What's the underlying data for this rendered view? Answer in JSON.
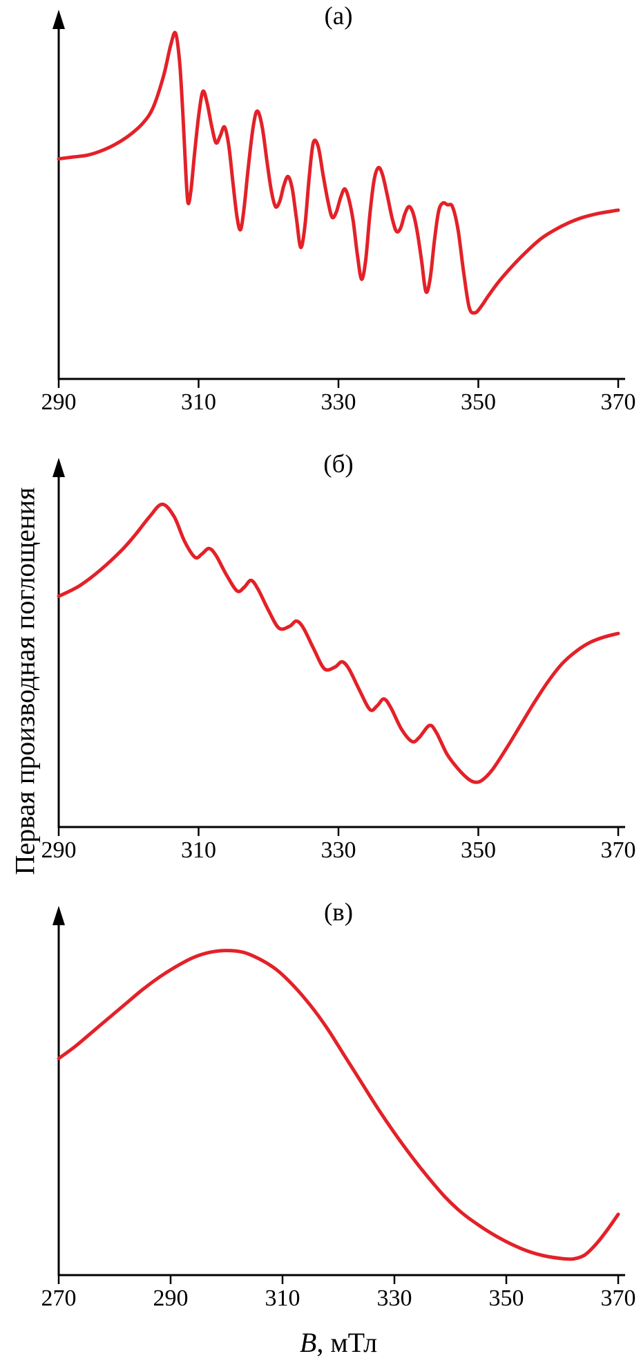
{
  "figure": {
    "ylabel": "Первая производная поглощения",
    "xlabel_variable": "B",
    "xlabel_unit": ", мТл",
    "curve_color": "#e32128",
    "axis_color": "#000000"
  },
  "chart_data": [
    {
      "type": "line",
      "panel": "a",
      "title": "(а)",
      "xlim": [
        290,
        370
      ],
      "xticks": [
        290,
        310,
        330,
        350,
        370
      ],
      "ylim": [
        0,
        1
      ],
      "grid": false,
      "legend": false,
      "x": [
        290,
        292,
        294,
        296,
        298,
        300,
        302,
        303.5,
        305,
        306,
        306.7,
        307.3,
        307.8,
        308.2,
        308.5,
        308.9,
        309.4,
        310,
        310.6,
        311.2,
        311.9,
        312.5,
        313.1,
        313.7,
        314.3,
        314.9,
        315.5,
        316,
        316.5,
        317.1,
        317.8,
        318.4,
        319.1,
        319.8,
        320.4,
        321,
        321.6,
        322.2,
        322.8,
        323.4,
        324,
        324.6,
        325.2,
        325.8,
        326.4,
        327.1,
        327.8,
        328.5,
        329.1,
        329.7,
        330.3,
        330.9,
        331.5,
        332.1,
        332.7,
        333.3,
        333.9,
        334.5,
        335.1,
        335.7,
        336.3,
        337,
        337.7,
        338.3,
        338.9,
        339.5,
        340.1,
        340.7,
        341.3,
        341.9,
        342.5,
        343.1,
        343.7,
        344.3,
        344.9,
        345.6,
        346.3,
        347.1,
        347.9,
        348.7,
        349.5,
        350.3,
        351.5,
        353,
        355,
        357,
        359,
        361,
        363,
        365,
        367,
        369,
        370
      ],
      "y": [
        0.61,
        0.615,
        0.62,
        0.632,
        0.65,
        0.675,
        0.71,
        0.755,
        0.845,
        0.93,
        0.965,
        0.88,
        0.72,
        0.56,
        0.485,
        0.52,
        0.62,
        0.73,
        0.8,
        0.77,
        0.7,
        0.655,
        0.675,
        0.7,
        0.65,
        0.545,
        0.445,
        0.41,
        0.47,
        0.585,
        0.7,
        0.745,
        0.7,
        0.6,
        0.52,
        0.475,
        0.49,
        0.535,
        0.56,
        0.525,
        0.44,
        0.36,
        0.42,
        0.555,
        0.655,
        0.645,
        0.565,
        0.49,
        0.445,
        0.46,
        0.5,
        0.525,
        0.495,
        0.435,
        0.34,
        0.27,
        0.325,
        0.455,
        0.55,
        0.585,
        0.565,
        0.505,
        0.44,
        0.405,
        0.415,
        0.455,
        0.475,
        0.455,
        0.4,
        0.32,
        0.235,
        0.27,
        0.375,
        0.46,
        0.485,
        0.48,
        0.475,
        0.41,
        0.29,
        0.19,
        0.175,
        0.19,
        0.225,
        0.265,
        0.31,
        0.35,
        0.385,
        0.41,
        0.43,
        0.445,
        0.455,
        0.462,
        0.465
      ]
    },
    {
      "type": "line",
      "panel": "b",
      "title": "(б)",
      "xlim": [
        290,
        370
      ],
      "xticks": [
        290,
        310,
        330,
        350,
        370
      ],
      "ylim": [
        0,
        1
      ],
      "grid": false,
      "legend": false,
      "x": [
        290,
        293,
        296,
        299,
        301,
        303,
        304.8,
        306.5,
        308,
        309.5,
        310.5,
        311.5,
        312.5,
        314,
        315.5,
        316.5,
        317.5,
        318.5,
        320,
        321.5,
        323,
        324,
        325,
        326.5,
        328,
        329.5,
        330.5,
        331.5,
        333,
        334.5,
        335.5,
        336.5,
        337.5,
        339,
        340.5,
        341.5,
        343,
        344,
        345.5,
        347,
        348.5,
        349.5,
        350.5,
        352,
        354,
        356,
        358,
        360,
        362,
        364,
        366,
        368,
        370
      ],
      "y": [
        0.64,
        0.67,
        0.715,
        0.77,
        0.815,
        0.865,
        0.9,
        0.865,
        0.795,
        0.75,
        0.76,
        0.775,
        0.755,
        0.7,
        0.655,
        0.665,
        0.685,
        0.66,
        0.6,
        0.55,
        0.555,
        0.57,
        0.55,
        0.49,
        0.435,
        0.44,
        0.455,
        0.435,
        0.375,
        0.32,
        0.33,
        0.35,
        0.325,
        0.265,
        0.23,
        0.24,
        0.275,
        0.255,
        0.195,
        0.155,
        0.125,
        0.115,
        0.12,
        0.15,
        0.21,
        0.275,
        0.34,
        0.4,
        0.45,
        0.485,
        0.51,
        0.525,
        0.535
      ]
    },
    {
      "type": "line",
      "panel": "v",
      "title": "(в)",
      "xlim": [
        270,
        370
      ],
      "xticks": [
        270,
        290,
        310,
        330,
        350,
        370
      ],
      "ylim": [
        0,
        1
      ],
      "grid": false,
      "legend": false,
      "x": [
        270,
        273,
        276,
        279,
        282,
        285,
        288,
        291,
        294,
        297,
        300,
        303,
        306,
        309,
        312,
        315,
        318,
        321,
        324,
        327,
        330,
        333,
        336,
        339,
        342,
        345,
        348,
        351,
        354,
        357,
        360,
        362,
        364,
        366,
        368,
        370
      ],
      "y": [
        0.6,
        0.635,
        0.675,
        0.715,
        0.755,
        0.795,
        0.83,
        0.86,
        0.885,
        0.9,
        0.905,
        0.9,
        0.88,
        0.85,
        0.805,
        0.75,
        0.685,
        0.61,
        0.535,
        0.46,
        0.39,
        0.325,
        0.265,
        0.21,
        0.165,
        0.13,
        0.1,
        0.075,
        0.055,
        0.042,
        0.035,
        0.034,
        0.045,
        0.075,
        0.115,
        0.16
      ]
    }
  ]
}
